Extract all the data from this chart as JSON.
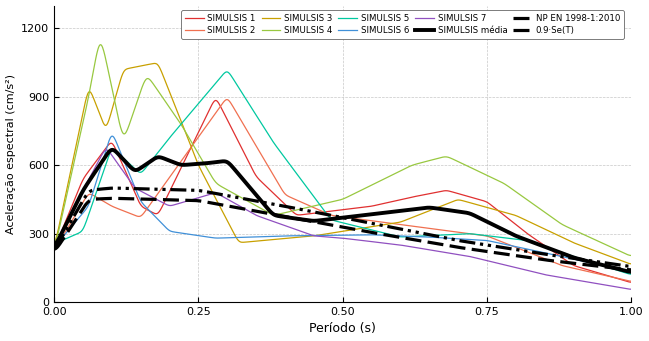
{
  "xlabel": "Período (s)",
  "ylabel": "Aceleração espectral (cm/s²)",
  "xlim": [
    0,
    1.0
  ],
  "ylim": [
    0,
    1300
  ],
  "yticks": [
    0,
    300,
    600,
    900,
    1200
  ],
  "xticks": [
    0,
    0.25,
    0.5,
    0.75,
    1.0
  ],
  "legend_entries": [
    "SIMULSIS 1",
    "SIMULSIS 2",
    "SIMULSIS 3",
    "SIMULSIS 4",
    "SIMULSIS 5",
    "SIMULSIS 6",
    "SIMULSIS 7",
    "SIMULSIS média",
    "NP EN 1998-1:2010",
    "0.9·Se(T)"
  ],
  "colors": {
    "sim1": "#e03030",
    "sim2": "#f07050",
    "sim3": "#c8a000",
    "sim4": "#98c840",
    "sim5": "#00c8a0",
    "sim6": "#4090d8",
    "sim7": "#9050c0",
    "media": "#000000",
    "npen": "#000000",
    "se": "#000000"
  },
  "background_color": "#ffffff",
  "grid_color": "#b0b0b0"
}
